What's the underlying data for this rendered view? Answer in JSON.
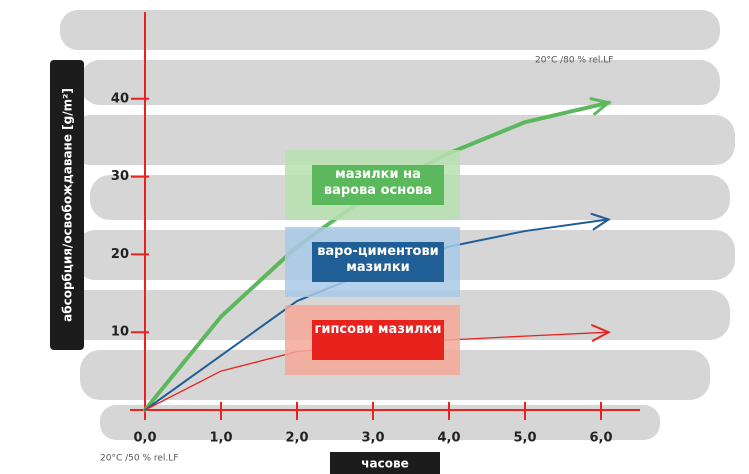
{
  "chart_data": {
    "type": "line",
    "y_label": "абсорбция/освобождаване [g/m²]",
    "x_label": "часове",
    "annotations": [
      "20°C /80 % rel.LF",
      "20°C /50 % rel.LF"
    ],
    "x": [
      0,
      1,
      2,
      3,
      4,
      5,
      6.1
    ],
    "series": [
      {
        "name": "мазилки на варова основа",
        "color": "#5cb85c",
        "values": [
          0,
          12,
          21,
          28,
          33,
          37,
          39.5
        ]
      },
      {
        "name": "варо-циментови мазилки",
        "color": "#1f5f96",
        "values": [
          0,
          7,
          14,
          18,
          21,
          23,
          24.5
        ]
      },
      {
        "name": "гипсови мазилки",
        "color": "#e8231e",
        "values": [
          0,
          5,
          7.5,
          8.5,
          9,
          9.5,
          10
        ]
      }
    ],
    "xlim": [
      0,
      6.5
    ],
    "ylim": [
      0,
      50
    ],
    "xticks": [
      {
        "value": 0,
        "label": "0,0"
      },
      {
        "value": 1,
        "label": "1,0"
      },
      {
        "value": 2,
        "label": "2,0"
      },
      {
        "value": 3,
        "label": "3,0"
      },
      {
        "value": 4,
        "label": "4,0"
      },
      {
        "value": 5,
        "label": "5,0"
      },
      {
        "value": 6,
        "label": "6,0"
      }
    ],
    "yticks": [
      10,
      20,
      30,
      40
    ]
  }
}
